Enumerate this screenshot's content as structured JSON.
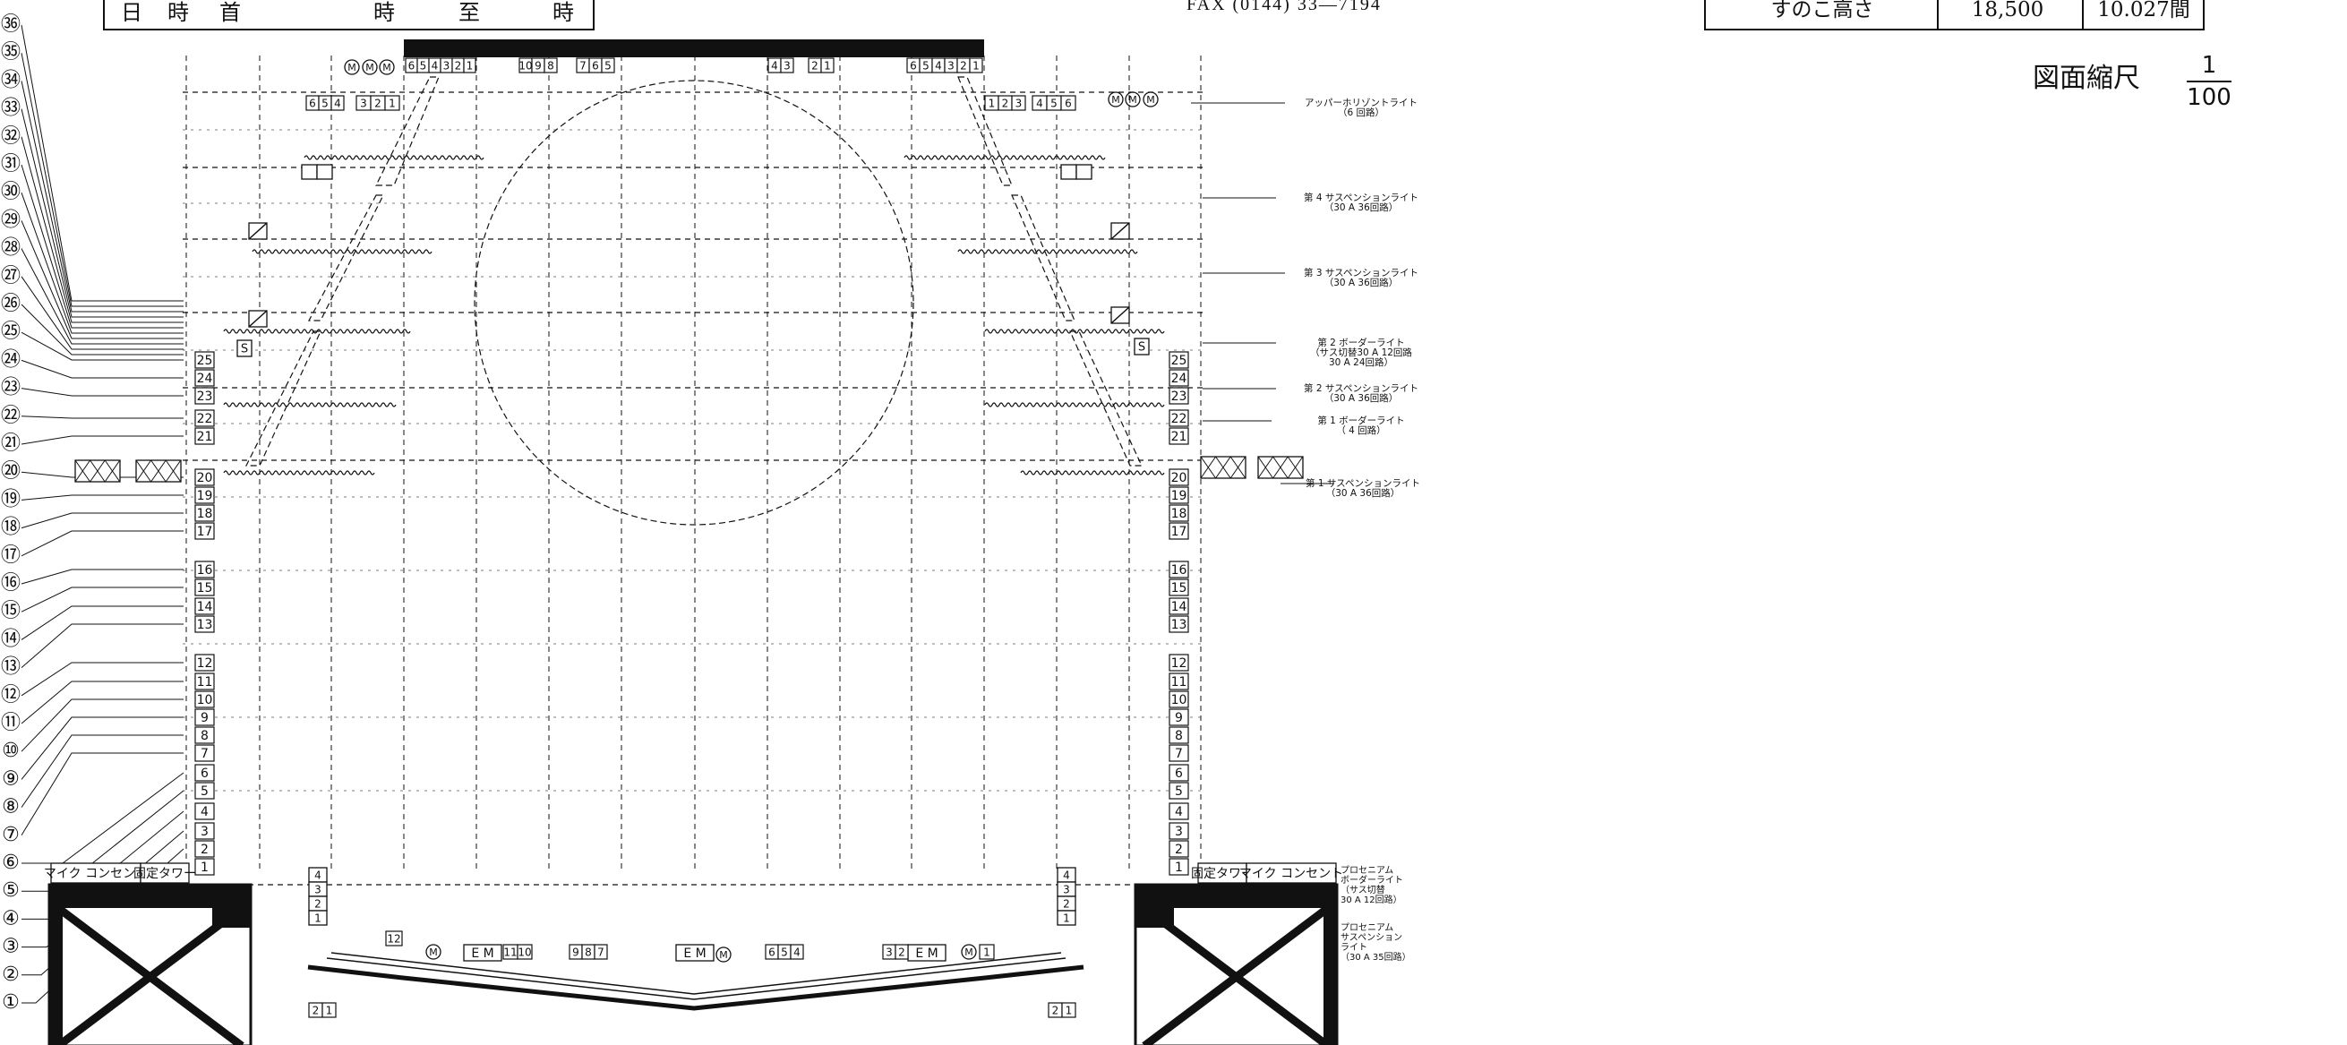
{
  "header": {
    "left_cells": [
      "日",
      "時",
      "首",
      "時",
      "至",
      "時"
    ],
    "fax": "FAX (0144) 33—7194",
    "right_label": "すのこ高さ",
    "right_value_1": "18,500",
    "right_value_2": "10.027間"
  },
  "scale": {
    "label": "図面縮尺",
    "numerator": "1",
    "denominator": "100"
  },
  "batten_numbers": [
    "1",
    "2",
    "3",
    "4",
    "5",
    "6",
    "7",
    "8",
    "9",
    "10",
    "11",
    "12",
    "13",
    "14",
    "15",
    "16",
    "17",
    "18",
    "19",
    "20",
    "21",
    "22",
    "23",
    "24",
    "25"
  ],
  "circled_labels": [
    "①",
    "②",
    "③",
    "④",
    "⑤",
    "⑥",
    "⑦",
    "⑧",
    "⑨",
    "⑩",
    "⑪",
    "⑫",
    "⑬",
    "⑭",
    "⑮",
    "⑯",
    "⑰",
    "⑱",
    "⑲",
    "⑳",
    "㉑",
    "㉒",
    "㉓",
    "㉔",
    "㉕",
    "㉖",
    "㉗",
    "㉘",
    "㉙",
    "㉚",
    "㉛",
    "㉜",
    "㉝",
    "㉞",
    "㉟",
    "㊱"
  ],
  "top_circuit_groups": [
    [
      "6",
      "5",
      "4",
      "3",
      "2",
      "1"
    ],
    [
      "10",
      "9",
      "8"
    ],
    [
      "7",
      "6",
      "5"
    ],
    [
      "4",
      "3"
    ],
    [
      "2",
      "1"
    ],
    [
      "6",
      "5",
      "4",
      "3",
      "2",
      "1"
    ]
  ],
  "upper_left_circuits": [
    "6",
    "5",
    "4",
    "3",
    "2",
    "1"
  ],
  "upper_right_circuits": [
    "1",
    "2",
    "3",
    "4",
    "5",
    "6"
  ],
  "motor_mark": "M",
  "side_marker_s": "S",
  "apron_labels": {
    "c12": "12",
    "em": "E M",
    "c11_10": [
      "11",
      "10"
    ],
    "c9_8_7": [
      "9",
      "8",
      "7"
    ],
    "c6_5_4": [
      "6",
      "5",
      "4"
    ],
    "c3_2": [
      "3",
      "2"
    ],
    "c1": "1",
    "c2_1": [
      "2",
      "1"
    ],
    "c4_3_2_1": [
      "4",
      "3",
      "2",
      "1"
    ]
  },
  "corner_labels": {
    "mic": "マイク コンセント",
    "tower": "固定タワー"
  },
  "right_annotations": [
    {
      "lines": [
        "アッパーホリゾントライト",
        "（6 回路）"
      ]
    },
    {
      "lines": [
        "第 4 サスペンションライト",
        "（30 A 36回路）"
      ]
    },
    {
      "lines": [
        "第 3 サスペンションライト",
        "（30 A 36回路）"
      ]
    },
    {
      "lines": [
        "第 2 ボーダーライト",
        "（サス切替30 A  12回路",
        "  30 A      24回路）"
      ]
    },
    {
      "lines": [
        "第 2 サスペンションライト",
        "（30 A  36回路）"
      ]
    },
    {
      "lines": [
        "第 1 ボーダーライト",
        "（ 4 回路）"
      ]
    },
    {
      "lines": [
        "第 1 サスペンションライト",
        "（30 A  36回路）"
      ]
    },
    {
      "lines": [
        "プロセニアム",
        "ボーダーライト",
        "（サス切替",
        "  30 A 12回路）"
      ]
    },
    {
      "lines": [
        "プロセニアム",
        "サスペンション",
        "ライト",
        "（30 A 35回路）"
      ]
    }
  ]
}
